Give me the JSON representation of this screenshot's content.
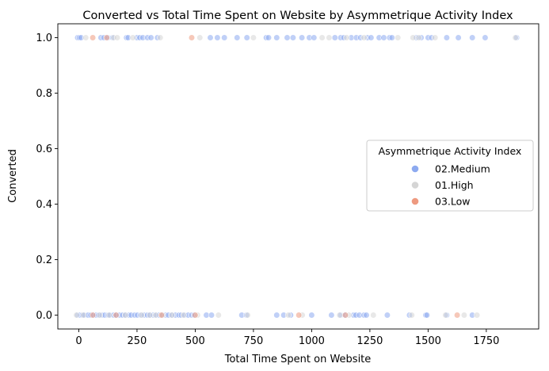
{
  "chart_data": {
    "type": "scatter",
    "title": "Converted vs Total Time Spent on Website by Asymmetrique Activity Index",
    "xlabel": "Total Time Spent on Website",
    "ylabel": "Converted",
    "xlim": [
      -90,
      1975
    ],
    "ylim": [
      -0.05,
      1.05
    ],
    "x_ticks": [
      0,
      250,
      500,
      750,
      1000,
      1250,
      1500,
      1750
    ],
    "x_tick_labels": [
      "0",
      "250",
      "500",
      "750",
      "1000",
      "1250",
      "1500",
      "1750"
    ],
    "y_ticks": [
      0.0,
      0.2,
      0.4,
      0.6,
      0.8,
      1.0
    ],
    "y_tick_labels": [
      "0.0",
      "0.2",
      "0.4",
      "0.6",
      "0.8",
      "1.0"
    ],
    "grid": false,
    "legend": {
      "title": "Asymmetrique Activity Index",
      "placement": "center-right"
    },
    "colors": {
      "02.Medium": "#8daaf0",
      "01.High": "#d5d5d5",
      "03.Low": "#ee9a80"
    },
    "series": [
      {
        "name": "02.Medium",
        "points": [
          [
            -5,
            1
          ],
          [
            3,
            1
          ],
          [
            10,
            1
          ],
          [
            95,
            1
          ],
          [
            108,
            1
          ],
          [
            125,
            1
          ],
          [
            145,
            1
          ],
          [
            205,
            1
          ],
          [
            212,
            1
          ],
          [
            250,
            1
          ],
          [
            262,
            1
          ],
          [
            275,
            1
          ],
          [
            295,
            1
          ],
          [
            310,
            1
          ],
          [
            338,
            1
          ],
          [
            565,
            1
          ],
          [
            595,
            1
          ],
          [
            625,
            1
          ],
          [
            680,
            1
          ],
          [
            722,
            1
          ],
          [
            805,
            1
          ],
          [
            815,
            1
          ],
          [
            850,
            1
          ],
          [
            895,
            1
          ],
          [
            920,
            1
          ],
          [
            958,
            1
          ],
          [
            990,
            1
          ],
          [
            1010,
            1
          ],
          [
            1100,
            1
          ],
          [
            1125,
            1
          ],
          [
            1138,
            1
          ],
          [
            1170,
            1
          ],
          [
            1192,
            1
          ],
          [
            1210,
            1
          ],
          [
            1240,
            1
          ],
          [
            1255,
            1
          ],
          [
            1290,
            1
          ],
          [
            1310,
            1
          ],
          [
            1335,
            1
          ],
          [
            1345,
            1
          ],
          [
            1450,
            1
          ],
          [
            1470,
            1
          ],
          [
            1500,
            1
          ],
          [
            1515,
            1
          ],
          [
            1580,
            1
          ],
          [
            1630,
            1
          ],
          [
            1690,
            1
          ],
          [
            1745,
            1
          ],
          [
            1880,
            1
          ],
          [
            -5,
            0
          ],
          [
            5,
            0
          ],
          [
            15,
            0
          ],
          [
            25,
            0
          ],
          [
            40,
            0
          ],
          [
            52,
            0
          ],
          [
            65,
            0
          ],
          [
            75,
            0
          ],
          [
            85,
            0
          ],
          [
            100,
            0
          ],
          [
            112,
            0
          ],
          [
            125,
            0
          ],
          [
            135,
            0
          ],
          [
            150,
            0
          ],
          [
            162,
            0
          ],
          [
            175,
            0
          ],
          [
            188,
            0
          ],
          [
            200,
            0
          ],
          [
            215,
            0
          ],
          [
            225,
            0
          ],
          [
            240,
            0
          ],
          [
            252,
            0
          ],
          [
            265,
            0
          ],
          [
            280,
            0
          ],
          [
            295,
            0
          ],
          [
            305,
            0
          ],
          [
            320,
            0
          ],
          [
            335,
            0
          ],
          [
            345,
            0
          ],
          [
            358,
            0
          ],
          [
            372,
            0
          ],
          [
            385,
            0
          ],
          [
            400,
            0
          ],
          [
            415,
            0
          ],
          [
            430,
            0
          ],
          [
            440,
            0
          ],
          [
            455,
            0
          ],
          [
            470,
            0
          ],
          [
            485,
            0
          ],
          [
            495,
            0
          ],
          [
            548,
            0
          ],
          [
            570,
            0
          ],
          [
            700,
            0
          ],
          [
            720,
            0
          ],
          [
            850,
            0
          ],
          [
            880,
            0
          ],
          [
            910,
            0
          ],
          [
            1000,
            0
          ],
          [
            1085,
            0
          ],
          [
            1125,
            0
          ],
          [
            1145,
            0
          ],
          [
            1180,
            0
          ],
          [
            1190,
            0
          ],
          [
            1205,
            0
          ],
          [
            1225,
            0
          ],
          [
            1235,
            0
          ],
          [
            1325,
            0
          ],
          [
            1420,
            0
          ],
          [
            1490,
            0
          ],
          [
            1495,
            0
          ],
          [
            1580,
            0
          ],
          [
            1690,
            0
          ]
        ]
      },
      {
        "name": "01.High",
        "points": [
          [
            30,
            1
          ],
          [
            150,
            1
          ],
          [
            165,
            1
          ],
          [
            232,
            1
          ],
          [
            350,
            1
          ],
          [
            520,
            1
          ],
          [
            750,
            1
          ],
          [
            1045,
            1
          ],
          [
            1075,
            1
          ],
          [
            1150,
            1
          ],
          [
            1225,
            1
          ],
          [
            1370,
            1
          ],
          [
            1435,
            1
          ],
          [
            1460,
            1
          ],
          [
            1530,
            1
          ],
          [
            1875,
            1
          ],
          [
            -10,
            0
          ],
          [
            20,
            0
          ],
          [
            90,
            0
          ],
          [
            130,
            0
          ],
          [
            200,
            0
          ],
          [
            270,
            0
          ],
          [
            305,
            0
          ],
          [
            330,
            0
          ],
          [
            360,
            0
          ],
          [
            400,
            0
          ],
          [
            450,
            0
          ],
          [
            510,
            0
          ],
          [
            600,
            0
          ],
          [
            725,
            0
          ],
          [
            900,
            0
          ],
          [
            960,
            0
          ],
          [
            1120,
            0
          ],
          [
            1160,
            0
          ],
          [
            1265,
            0
          ],
          [
            1430,
            0
          ],
          [
            1575,
            0
          ],
          [
            1655,
            0
          ],
          [
            1710,
            0
          ]
        ]
      },
      {
        "name": "03.Low",
        "points": [
          [
            60,
            1
          ],
          [
            120,
            1
          ],
          [
            485,
            1
          ],
          [
            60,
            0
          ],
          [
            160,
            0
          ],
          [
            355,
            0
          ],
          [
            500,
            0
          ],
          [
            945,
            0
          ],
          [
            1145,
            0
          ],
          [
            1625,
            0
          ]
        ]
      }
    ]
  }
}
